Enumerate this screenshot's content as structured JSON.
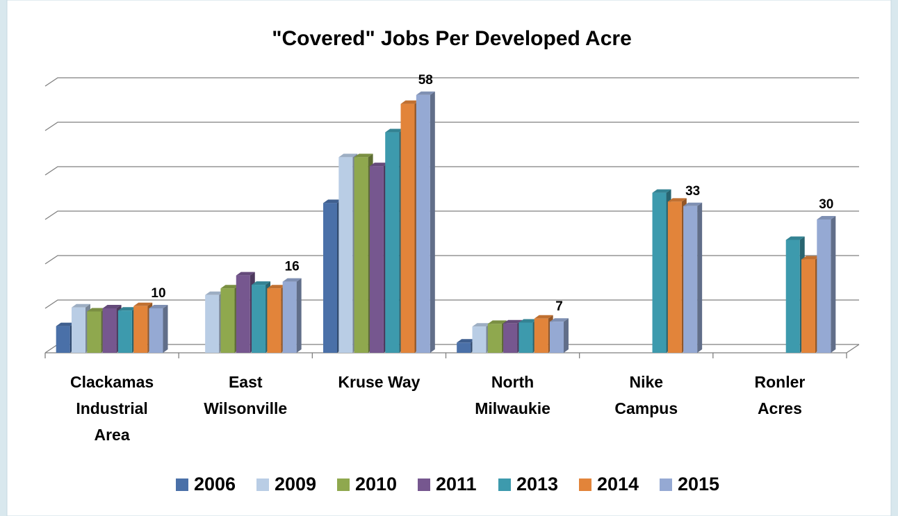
{
  "chart_data": {
    "type": "bar3d",
    "title": "\"Covered\" Jobs Per Developed Acre",
    "categories": [
      "Clackamas Industrial Area",
      "East Wilsonville",
      "Kruse Way",
      "North Milwaukie",
      "Nike Campus",
      "Ronler Acres"
    ],
    "series": [
      {
        "name": "2006",
        "color": "#4a70a8",
        "values": [
          6,
          null,
          33.7,
          2.3,
          null,
          null
        ]
      },
      {
        "name": "2009",
        "color": "#b9cde5",
        "values": [
          10.2,
          13,
          44,
          5.9,
          null,
          null
        ]
      },
      {
        "name": "2010",
        "color": "#8fa84e",
        "values": [
          9.3,
          14.5,
          44,
          6.5,
          null,
          null
        ]
      },
      {
        "name": "2011",
        "color": "#76578f",
        "values": [
          10,
          17.4,
          42,
          6.6,
          null,
          null
        ]
      },
      {
        "name": "2013",
        "color": "#3d9aad",
        "values": [
          9.5,
          15.3,
          49.6,
          6.8,
          36,
          25.4
        ]
      },
      {
        "name": "2014",
        "color": "#e2843a",
        "values": [
          10.5,
          14.5,
          56,
          7.7,
          34,
          21
        ]
      },
      {
        "name": "2015",
        "color": "#95a9d3",
        "values": [
          10,
          16,
          58,
          7,
          33,
          30
        ],
        "show_labels": true
      }
    ],
    "ylim": [
      0,
      60
    ],
    "yticks": [
      0,
      10,
      20,
      30,
      40,
      50,
      60
    ],
    "grid": true,
    "legend": "bottom"
  }
}
